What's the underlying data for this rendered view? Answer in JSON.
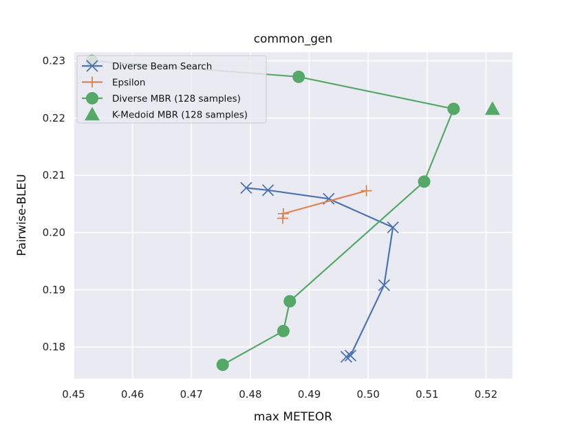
{
  "chart_data": {
    "type": "scatter",
    "title": "common_gen",
    "xlabel": "max METEOR",
    "ylabel": "Pairwise-BLEU",
    "xlim": [
      0.45,
      0.5245
    ],
    "ylim": [
      0.1745,
      0.2315
    ],
    "xticks": [
      0.45,
      0.46,
      0.47,
      0.48,
      0.49,
      0.5,
      0.51,
      0.52
    ],
    "xtick_labels": [
      "0.45",
      "0.46",
      "0.47",
      "0.48",
      "0.49",
      "0.50",
      "0.51",
      "0.52"
    ],
    "yticks": [
      0.18,
      0.19,
      0.2,
      0.21,
      0.22,
      0.23
    ],
    "ytick_labels": [
      "0.18",
      "0.19",
      "0.20",
      "0.21",
      "0.22",
      "0.23"
    ],
    "grid": true,
    "legend_position": "top-left",
    "series": [
      {
        "name": "Diverse Beam Search",
        "marker": "x",
        "line": true,
        "color": "#4c72b0",
        "points": [
          [
            0.4793,
            0.2078
          ],
          [
            0.483,
            0.2074
          ],
          [
            0.4933,
            0.2059
          ],
          [
            0.5042,
            0.2009
          ],
          [
            0.5027,
            0.1908
          ],
          [
            0.497,
            0.1785
          ],
          [
            0.4963,
            0.1783
          ]
        ]
      },
      {
        "name": "Epsilon",
        "marker": "+",
        "line": true,
        "color": "#dd8452",
        "points": [
          [
            0.4855,
            0.2025
          ],
          [
            0.4856,
            0.2033
          ],
          [
            0.4997,
            0.2073
          ]
        ]
      },
      {
        "name": "Diverse MBR (128 samples)",
        "marker": "circle",
        "line": true,
        "color": "#55a868",
        "points": [
          [
            0.4531,
            0.23
          ],
          [
            0.4882,
            0.2272
          ],
          [
            0.5145,
            0.2216
          ],
          [
            0.5095,
            0.2089
          ],
          [
            0.4867,
            0.188
          ],
          [
            0.4856,
            0.1828
          ],
          [
            0.4753,
            0.1769
          ]
        ]
      },
      {
        "name": "K-Medoid MBR (128 samples)",
        "marker": "triangle",
        "line": false,
        "color": "#55a868",
        "points": [
          [
            0.5211,
            0.2216
          ]
        ]
      }
    ]
  }
}
